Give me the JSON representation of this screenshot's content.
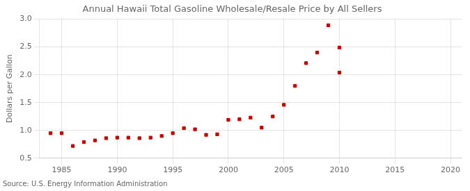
{
  "chart_data": {
    "type": "scatter",
    "title": "Annual Hawaii Total Gasoline Wholesale/Resale Price by All Sellers",
    "ylabel": "Dollars per Gallon",
    "source": "Source: U.S. Energy Information Administration",
    "x": [
      1984,
      1985,
      1986,
      1987,
      1988,
      1989,
      1990,
      1991,
      1992,
      1993,
      1994,
      1995,
      1996,
      1997,
      1998,
      1999,
      2000,
      2001,
      2002,
      2003,
      2004,
      2005,
      2006,
      2007,
      2008,
      2009,
      2010,
      2010
    ],
    "values": [
      0.95,
      0.95,
      0.72,
      0.79,
      0.82,
      0.86,
      0.87,
      0.87,
      0.86,
      0.87,
      0.9,
      0.95,
      1.04,
      1.02,
      0.92,
      0.93,
      1.19,
      1.2,
      1.23,
      1.05,
      1.25,
      1.46,
      1.8,
      2.21,
      2.4,
      2.89,
      2.04,
      2.49
    ],
    "color": "#cc0000",
    "marker": "square",
    "xlim": [
      1983,
      2021
    ],
    "ylim": [
      0.5,
      3.0
    ],
    "xticks": [
      1985,
      1990,
      1995,
      2000,
      2005,
      2010,
      2015,
      2020
    ],
    "yticks": [
      0.5,
      {
        "value": 1.0,
        "label": "1.0"
      },
      1.5,
      {
        "value": 2.0,
        "label": "2.0"
      },
      2.5,
      {
        "value": 3.0,
        "label": "3.0"
      }
    ],
    "grid": true
  }
}
